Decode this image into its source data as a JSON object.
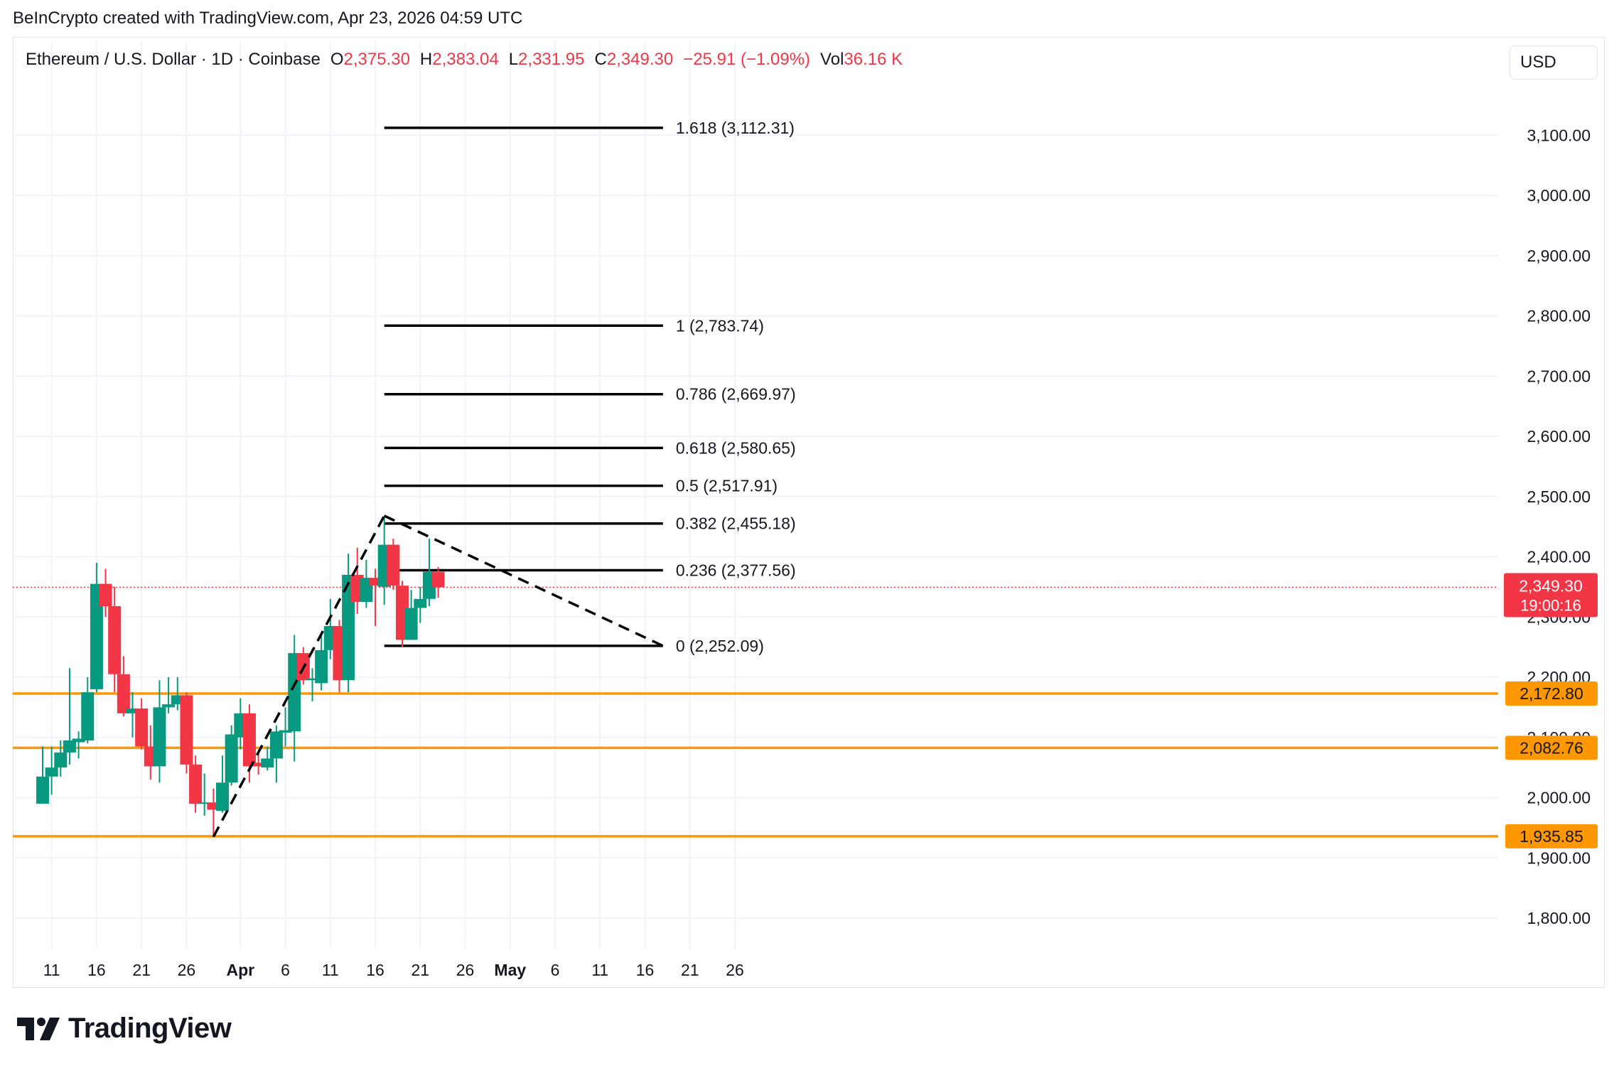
{
  "header": {
    "attribution": "BeInCrypto created with TradingView.com, Apr 23, 2026 04:59 UTC"
  },
  "legend": {
    "symbol": "Ethereum / U.S. Dollar · 1D · Coinbase",
    "open_label": "O",
    "open": "2,375.30",
    "high_label": "H",
    "high": "2,383.04",
    "low_label": "L",
    "low": "2,331.95",
    "close_label": "C",
    "close": "2,349.30",
    "change": "−25.91 (−1.09%)",
    "vol_label": "Vol",
    "vol": "36.16 K"
  },
  "currency_button": "USD",
  "footer": {
    "brand": "TradingView"
  },
  "colors": {
    "up": "#089981",
    "down": "#f23645",
    "support": "#ff9800",
    "fib": "#000000",
    "grid": "#f0f3fa",
    "price_line": "#f23645"
  },
  "chart_data": {
    "type": "candlestick",
    "symbol": "ETH/USD",
    "timeframe": "1D",
    "x_tick_labels": [
      "11",
      "16",
      "21",
      "26",
      "Apr",
      "6",
      "11",
      "16",
      "21",
      "26",
      "May",
      "6",
      "11",
      "16",
      "21",
      "26"
    ],
    "x_tick_dates": [
      "2026-03-11",
      "2026-03-16",
      "2026-03-21",
      "2026-03-26",
      "2026-04-01",
      "2026-04-06",
      "2026-04-11",
      "2026-04-16",
      "2026-04-21",
      "2026-04-26",
      "2026-05-01",
      "2026-05-06",
      "2026-05-11",
      "2026-05-16",
      "2026-05-21",
      "2026-05-26"
    ],
    "y_tick_labels": [
      "1,800.00",
      "1,900.00",
      "2,000.00",
      "2,100.00",
      "2,200.00",
      "2,300.00",
      "2,400.00",
      "2,500.00",
      "2,600.00",
      "2,700.00",
      "2,800.00",
      "2,900.00",
      "3,000.00",
      "3,100.00"
    ],
    "y_ticks": [
      1800,
      1900,
      2000,
      2100,
      2200,
      2300,
      2400,
      2500,
      2600,
      2700,
      2800,
      2900,
      3000,
      3100
    ],
    "ylim": [
      1700,
      3260
    ],
    "candles": [
      {
        "date": "2026-03-10",
        "o": 1990,
        "h": 2085,
        "l": 1990,
        "c": 2035
      },
      {
        "date": "2026-03-11",
        "o": 2035,
        "h": 2085,
        "l": 2005,
        "c": 2050
      },
      {
        "date": "2026-03-12",
        "o": 2050,
        "h": 2095,
        "l": 2035,
        "c": 2075
      },
      {
        "date": "2026-03-13",
        "o": 2075,
        "h": 2215,
        "l": 2055,
        "c": 2095
      },
      {
        "date": "2026-03-14",
        "o": 2092,
        "h": 2110,
        "l": 2065,
        "c": 2098
      },
      {
        "date": "2026-03-15",
        "o": 2095,
        "h": 2200,
        "l": 2090,
        "c": 2175
      },
      {
        "date": "2026-03-16",
        "o": 2180,
        "h": 2390,
        "l": 2175,
        "c": 2355
      },
      {
        "date": "2026-03-17",
        "o": 2355,
        "h": 2380,
        "l": 2300,
        "c": 2318
      },
      {
        "date": "2026-03-18",
        "o": 2318,
        "h": 2350,
        "l": 2175,
        "c": 2205
      },
      {
        "date": "2026-03-19",
        "o": 2205,
        "h": 2235,
        "l": 2135,
        "c": 2140
      },
      {
        "date": "2026-03-20",
        "o": 2140,
        "h": 2175,
        "l": 2100,
        "c": 2148
      },
      {
        "date": "2026-03-21",
        "o": 2148,
        "h": 2165,
        "l": 2080,
        "c": 2085
      },
      {
        "date": "2026-03-22",
        "o": 2085,
        "h": 2120,
        "l": 2030,
        "c": 2052
      },
      {
        "date": "2026-03-23",
        "o": 2052,
        "h": 2195,
        "l": 2025,
        "c": 2150
      },
      {
        "date": "2026-03-24",
        "o": 2150,
        "h": 2200,
        "l": 2140,
        "c": 2155
      },
      {
        "date": "2026-03-25",
        "o": 2155,
        "h": 2200,
        "l": 2145,
        "c": 2170
      },
      {
        "date": "2026-03-26",
        "o": 2170,
        "h": 2175,
        "l": 2040,
        "c": 2055
      },
      {
        "date": "2026-03-27",
        "o": 2055,
        "h": 2070,
        "l": 1975,
        "c": 1990
      },
      {
        "date": "2026-03-28",
        "o": 1990,
        "h": 2040,
        "l": 1970,
        "c": 1992
      },
      {
        "date": "2026-03-29",
        "o": 1992,
        "h": 2015,
        "l": 1935,
        "c": 1980
      },
      {
        "date": "2026-03-30",
        "o": 1978,
        "h": 2070,
        "l": 1975,
        "c": 2025
      },
      {
        "date": "2026-03-31",
        "o": 2025,
        "h": 2120,
        "l": 2020,
        "c": 2105
      },
      {
        "date": "2026-04-01",
        "o": 2100,
        "h": 2165,
        "l": 2080,
        "c": 2140
      },
      {
        "date": "2026-04-02",
        "o": 2140,
        "h": 2155,
        "l": 2025,
        "c": 2052
      },
      {
        "date": "2026-04-03",
        "o": 2058,
        "h": 2075,
        "l": 2038,
        "c": 2052
      },
      {
        "date": "2026-04-04",
        "o": 2050,
        "h": 2085,
        "l": 2045,
        "c": 2065
      },
      {
        "date": "2026-04-05",
        "o": 2065,
        "h": 2120,
        "l": 2025,
        "c": 2110
      },
      {
        "date": "2026-04-06",
        "o": 2108,
        "h": 2150,
        "l": 2085,
        "c": 2112
      },
      {
        "date": "2026-04-07",
        "o": 2110,
        "h": 2270,
        "l": 2060,
        "c": 2240
      },
      {
        "date": "2026-04-08",
        "o": 2240,
        "h": 2250,
        "l": 2188,
        "c": 2195
      },
      {
        "date": "2026-04-09",
        "o": 2195,
        "h": 2215,
        "l": 2160,
        "c": 2198
      },
      {
        "date": "2026-04-10",
        "o": 2190,
        "h": 2270,
        "l": 2178,
        "c": 2245
      },
      {
        "date": "2026-04-11",
        "o": 2245,
        "h": 2330,
        "l": 2230,
        "c": 2285
      },
      {
        "date": "2026-04-12",
        "o": 2285,
        "h": 2295,
        "l": 2175,
        "c": 2195
      },
      {
        "date": "2026-04-13",
        "o": 2195,
        "h": 2405,
        "l": 2175,
        "c": 2370
      },
      {
        "date": "2026-04-14",
        "o": 2370,
        "h": 2415,
        "l": 2305,
        "c": 2325
      },
      {
        "date": "2026-04-15",
        "o": 2325,
        "h": 2395,
        "l": 2315,
        "c": 2365
      },
      {
        "date": "2026-04-16",
        "o": 2365,
        "h": 2380,
        "l": 2285,
        "c": 2352
      },
      {
        "date": "2026-04-17",
        "o": 2350,
        "h": 2468,
        "l": 2320,
        "c": 2420
      },
      {
        "date": "2026-04-18",
        "o": 2420,
        "h": 2430,
        "l": 2345,
        "c": 2352
      },
      {
        "date": "2026-04-19",
        "o": 2352,
        "h": 2360,
        "l": 2250,
        "c": 2262
      },
      {
        "date": "2026-04-20",
        "o": 2262,
        "h": 2345,
        "l": 2262,
        "c": 2315
      },
      {
        "date": "2026-04-21",
        "o": 2315,
        "h": 2350,
        "l": 2290,
        "c": 2330
      },
      {
        "date": "2026-04-22",
        "o": 2330,
        "h": 2430,
        "l": 2318,
        "c": 2375
      },
      {
        "date": "2026-04-23",
        "o": 2375,
        "h": 2383,
        "l": 2332,
        "c": 2349.3
      }
    ],
    "fibonacci": {
      "start_date": "2026-04-17",
      "end_date": "2026-05-18",
      "levels": [
        {
          "label": "1.618 (3,112.31)",
          "value": 3112.31
        },
        {
          "label": "1 (2,783.74)",
          "value": 2783.74
        },
        {
          "label": "0.786 (2,669.97)",
          "value": 2669.97
        },
        {
          "label": "0.618 (2,580.65)",
          "value": 2580.65
        },
        {
          "label": "0.5 (2,517.91)",
          "value": 2517.91
        },
        {
          "label": "0.382 (2,455.18)",
          "value": 2455.18
        },
        {
          "label": "0.236 (2,377.56)",
          "value": 2377.56
        },
        {
          "label": "0 (2,252.09)",
          "value": 2252.09
        }
      ]
    },
    "trendlines": [
      {
        "from": {
          "date": "2026-03-29",
          "value": 1935
        },
        "to": {
          "date": "2026-04-17",
          "value": 2468
        }
      },
      {
        "from": {
          "date": "2026-04-17",
          "value": 2468
        },
        "to": {
          "date": "2026-05-18",
          "value": 2252.09
        }
      }
    ],
    "support_levels": [
      {
        "value": 2172.8,
        "label": "2,172.80"
      },
      {
        "value": 2082.76,
        "label": "2,082.76"
      },
      {
        "value": 1935.85,
        "label": "1,935.85"
      }
    ],
    "last_price": {
      "value": 2349.3,
      "label": "2,349.30",
      "countdown": "19:00:16"
    }
  }
}
